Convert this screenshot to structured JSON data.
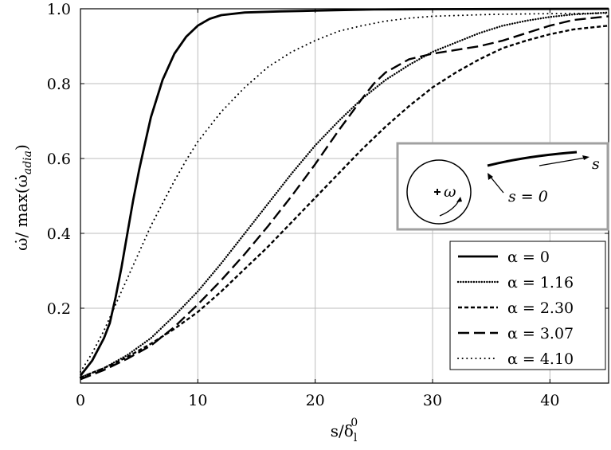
{
  "chart_data": {
    "type": "line",
    "xlabel": "s/δ",
    "xlabel_sub": "l",
    "xlabel_sup": "0",
    "ylabel_prefix": "ω̇/ max(ω̇",
    "ylabel_sub": "adia",
    "ylabel_suffix": ")",
    "xlim": [
      0,
      45
    ],
    "ylim": [
      0,
      1.0
    ],
    "x_ticks": [
      0,
      10,
      20,
      30,
      40
    ],
    "x_tick_labels": [
      "0",
      "10",
      "20",
      "30",
      "40"
    ],
    "y_ticks": [
      0.2,
      0.4,
      0.6,
      0.8,
      1.0
    ],
    "y_tick_labels": [
      "0.2",
      "0.4",
      "0.6",
      "0.8",
      "1.0"
    ],
    "grid": true,
    "legend_position": "bottom-right",
    "series": [
      {
        "name": "α = 0",
        "style": "solid",
        "points": [
          [
            0,
            0.02
          ],
          [
            1,
            0.06
          ],
          [
            2,
            0.12
          ],
          [
            2.5,
            0.16
          ],
          [
            3,
            0.23
          ],
          [
            3.5,
            0.31
          ],
          [
            4,
            0.4
          ],
          [
            4.5,
            0.49
          ],
          [
            5,
            0.57
          ],
          [
            5.5,
            0.64
          ],
          [
            6,
            0.71
          ],
          [
            7,
            0.81
          ],
          [
            8,
            0.88
          ],
          [
            9,
            0.925
          ],
          [
            10,
            0.955
          ],
          [
            11,
            0.973
          ],
          [
            12,
            0.983
          ],
          [
            14,
            0.99
          ],
          [
            17,
            0.993
          ],
          [
            20,
            0.995
          ],
          [
            25,
            0.998
          ],
          [
            30,
            0.999
          ],
          [
            45,
            1.0
          ]
        ]
      },
      {
        "name": "α = 1.16",
        "style": "dense-dot",
        "points": [
          [
            0,
            0.015
          ],
          [
            2,
            0.04
          ],
          [
            4,
            0.075
          ],
          [
            6,
            0.12
          ],
          [
            8,
            0.18
          ],
          [
            10,
            0.245
          ],
          [
            12,
            0.32
          ],
          [
            14,
            0.4
          ],
          [
            16,
            0.48
          ],
          [
            18,
            0.56
          ],
          [
            20,
            0.635
          ],
          [
            22,
            0.7
          ],
          [
            24,
            0.76
          ],
          [
            26,
            0.81
          ],
          [
            28,
            0.85
          ],
          [
            30,
            0.885
          ],
          [
            32,
            0.91
          ],
          [
            34,
            0.935
          ],
          [
            36,
            0.955
          ],
          [
            38,
            0.968
          ],
          [
            40,
            0.978
          ],
          [
            42,
            0.985
          ],
          [
            45,
            0.99
          ]
        ]
      },
      {
        "name": "α = 2.30",
        "style": "short-dash",
        "points": [
          [
            0,
            0.015
          ],
          [
            2,
            0.04
          ],
          [
            4,
            0.07
          ],
          [
            6,
            0.105
          ],
          [
            8,
            0.145
          ],
          [
            10,
            0.19
          ],
          [
            12,
            0.245
          ],
          [
            14,
            0.305
          ],
          [
            16,
            0.365
          ],
          [
            18,
            0.43
          ],
          [
            20,
            0.495
          ],
          [
            22,
            0.56
          ],
          [
            24,
            0.625
          ],
          [
            26,
            0.685
          ],
          [
            28,
            0.74
          ],
          [
            30,
            0.79
          ],
          [
            32,
            0.83
          ],
          [
            34,
            0.865
          ],
          [
            36,
            0.895
          ],
          [
            38,
            0.915
          ],
          [
            40,
            0.932
          ],
          [
            42,
            0.945
          ],
          [
            45,
            0.955
          ]
        ]
      },
      {
        "name": "α = 3.07",
        "style": "long-dash",
        "points": [
          [
            0,
            0.01
          ],
          [
            2,
            0.035
          ],
          [
            4,
            0.065
          ],
          [
            6,
            0.1
          ],
          [
            8,
            0.15
          ],
          [
            10,
            0.21
          ],
          [
            12,
            0.275
          ],
          [
            14,
            0.345
          ],
          [
            16,
            0.42
          ],
          [
            18,
            0.5
          ],
          [
            20,
            0.585
          ],
          [
            22,
            0.675
          ],
          [
            24,
            0.76
          ],
          [
            25,
            0.8
          ],
          [
            26,
            0.83
          ],
          [
            28,
            0.865
          ],
          [
            30,
            0.88
          ],
          [
            32,
            0.89
          ],
          [
            34,
            0.9
          ],
          [
            36,
            0.915
          ],
          [
            38,
            0.935
          ],
          [
            40,
            0.955
          ],
          [
            42,
            0.97
          ],
          [
            45,
            0.98
          ]
        ]
      },
      {
        "name": "α = 4.10",
        "style": "sparse-dot",
        "points": [
          [
            0,
            0.03
          ],
          [
            1,
            0.08
          ],
          [
            2,
            0.14
          ],
          [
            3,
            0.21
          ],
          [
            4,
            0.28
          ],
          [
            5,
            0.35
          ],
          [
            6,
            0.42
          ],
          [
            7,
            0.48
          ],
          [
            8,
            0.54
          ],
          [
            9,
            0.595
          ],
          [
            10,
            0.645
          ],
          [
            12,
            0.725
          ],
          [
            14,
            0.79
          ],
          [
            16,
            0.845
          ],
          [
            18,
            0.885
          ],
          [
            20,
            0.915
          ],
          [
            22,
            0.94
          ],
          [
            24,
            0.955
          ],
          [
            26,
            0.967
          ],
          [
            28,
            0.975
          ],
          [
            30,
            0.98
          ],
          [
            35,
            0.985
          ],
          [
            40,
            0.987
          ],
          [
            45,
            0.988
          ]
        ]
      }
    ],
    "inset": {
      "omega_label": "ω",
      "s_label": "s",
      "s_zero_label": "s = 0"
    }
  }
}
